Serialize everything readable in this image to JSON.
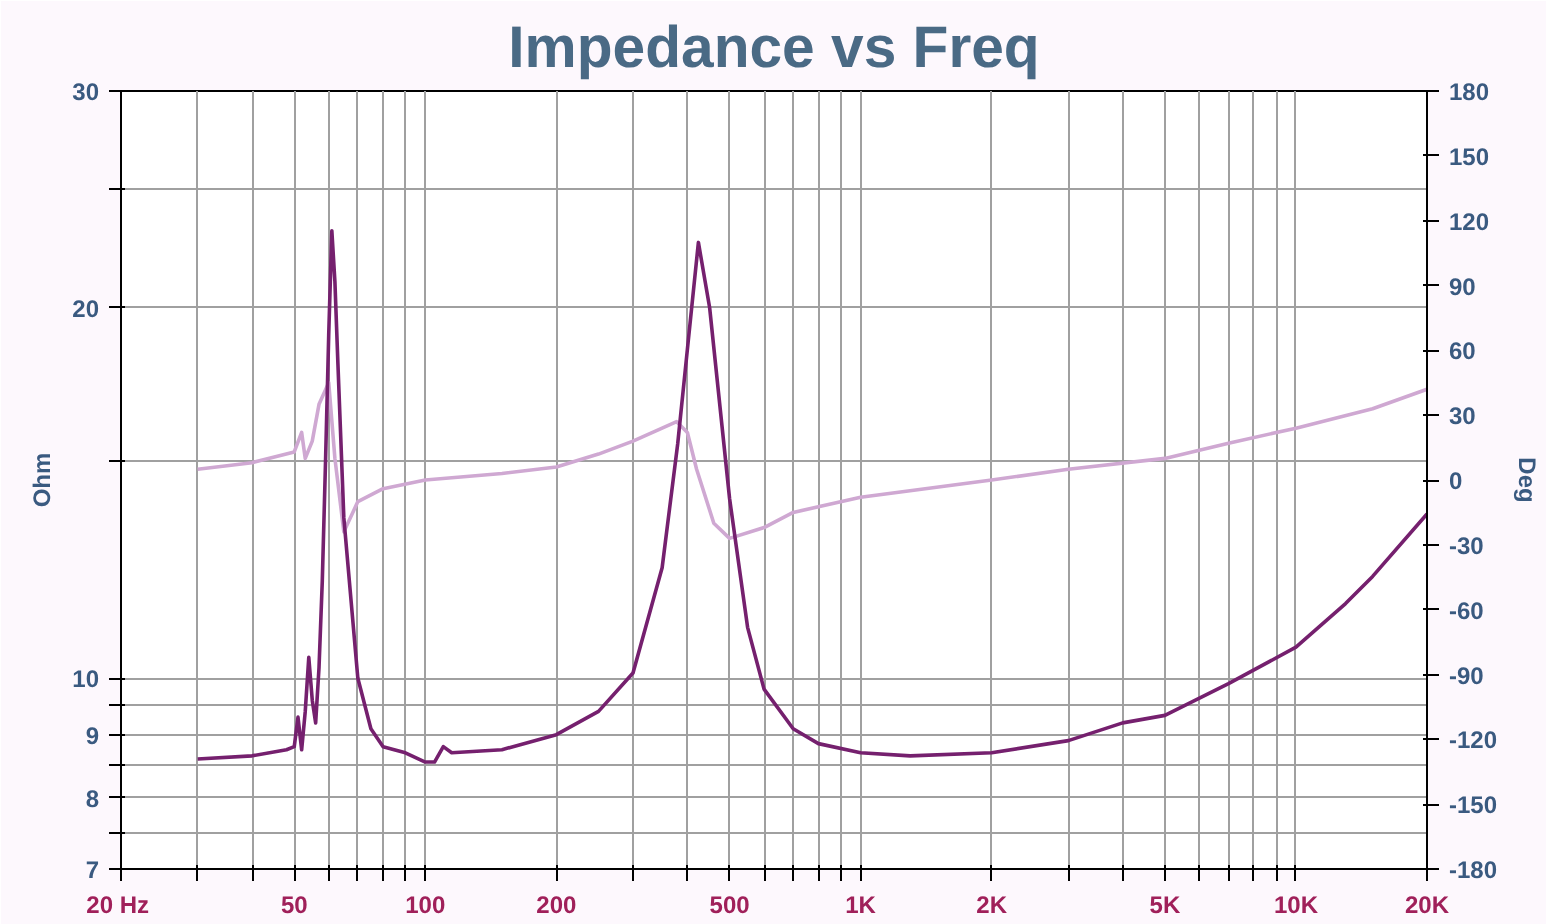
{
  "chart_data": {
    "type": "line",
    "title": "Impedance vs Freq",
    "ylabel": "Ohm",
    "y2label": "Deg",
    "log": "xy",
    "grid": true,
    "marker": "none",
    "line_style": "solid",
    "xlim": [
      20,
      20000
    ],
    "xticks": [
      {
        "value": 20,
        "label": "20  Hz"
      },
      {
        "value": 30,
        "label": null
      },
      {
        "value": 40,
        "label": null
      },
      50,
      {
        "value": 60,
        "label": null
      },
      {
        "value": 70,
        "label": null
      },
      {
        "value": 80,
        "label": null
      },
      {
        "value": 90,
        "label": null
      },
      100,
      {
        "value": 300,
        "label": null
      },
      {
        "value": 400,
        "label": null
      },
      200,
      500,
      {
        "value": 600,
        "label": null
      },
      {
        "value": 700,
        "label": null
      },
      {
        "value": 800,
        "label": null
      },
      {
        "value": 900,
        "label": null
      },
      {
        "value": 1000,
        "label": "1K"
      },
      {
        "value": 2000,
        "label": "2K"
      },
      {
        "value": 3000,
        "label": null
      },
      {
        "value": 4000,
        "label": null
      },
      {
        "value": 5000,
        "label": "5K"
      },
      {
        "value": 6000,
        "label": null
      },
      {
        "value": 7000,
        "label": null
      },
      {
        "value": 8000,
        "label": null
      },
      {
        "value": 9000,
        "label": null
      },
      {
        "value": 10000,
        "label": "10K"
      },
      {
        "value": 20000,
        "label": "20K"
      }
    ],
    "ylim": [
      7,
      30
    ],
    "yticks": [
      7,
      {
        "value": 7.5,
        "label": null
      },
      8,
      {
        "value": 8.5,
        "label": null
      },
      9,
      {
        "value": 9.5,
        "label": null
      },
      10,
      {
        "value": 15,
        "label": null
      },
      20,
      {
        "value": 25,
        "label": null
      },
      30
    ],
    "y2lim": [
      -180,
      180
    ],
    "y2ticks": [
      -180,
      -150,
      -120,
      -90,
      -60,
      -30,
      0,
      30,
      60,
      90,
      120,
      150,
      180
    ],
    "series": [
      {
        "color": "#cfa8d2",
        "axis": "y2",
        "x": [
          30,
          40,
          50,
          52,
          53,
          55,
          57,
          60,
          62,
          65,
          70,
          80,
          100,
          150,
          200,
          250,
          300,
          350,
          378,
          400,
          420,
          460,
          500,
          600,
          700,
          1000,
          2000,
          3000,
          5000,
          7000,
          10000,
          15000,
          20000
        ],
        "values": [
          5,
          8,
          13,
          22,
          10,
          18,
          35,
          45,
          10,
          -24,
          -10,
          -4,
          0,
          3,
          6,
          12,
          18,
          24,
          27,
          22,
          5,
          -20,
          -27,
          -22,
          -15,
          -8,
          0,
          5,
          10,
          17,
          24,
          33,
          42
        ]
      },
      {
        "color": "#75206e",
        "x": [
          30,
          40,
          48,
          50,
          51,
          52,
          53,
          54,
          55,
          56,
          57,
          58,
          59,
          60,
          61,
          62,
          63,
          65,
          70,
          75,
          80,
          90,
          100,
          105,
          110,
          115,
          150,
          200,
          250,
          300,
          350,
          380,
          400,
          424,
          450,
          500,
          550,
          600,
          700,
          800,
          1000,
          1300,
          2000,
          3000,
          4000,
          5000,
          7000,
          10000,
          13000,
          15000,
          20000
        ],
        "values": [
          8.6,
          8.65,
          8.75,
          8.8,
          9.3,
          8.75,
          9.4,
          10.4,
          9.6,
          9.2,
          10.2,
          12,
          15,
          19,
          23.1,
          21,
          18,
          13.5,
          10,
          9.1,
          8.8,
          8.7,
          8.55,
          8.55,
          8.8,
          8.7,
          8.75,
          9.0,
          9.4,
          10.1,
          12.3,
          15.5,
          18.5,
          22.6,
          20,
          14,
          11,
          9.8,
          9.1,
          8.85,
          8.7,
          8.65,
          8.7,
          8.9,
          9.2,
          9.33,
          9.9,
          10.6,
          11.5,
          12.1,
          13.6
        ]
      }
    ]
  }
}
